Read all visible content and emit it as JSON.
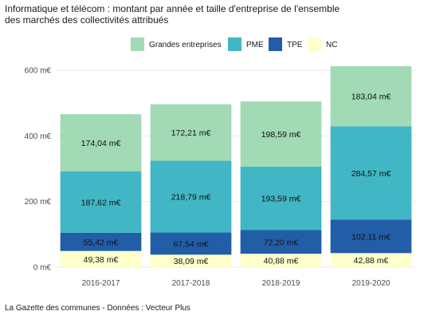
{
  "chart_data": {
    "type": "bar",
    "stacked": true,
    "title": "Informatique et télécom : montant par année et taille d'entreprise de l'ensemble des marchés des collectivités attribués",
    "title_lines": [
      "Informatique et télécom : montant par année et taille d'entreprise de l'ensemble",
      "des marchés des collectivités attribués"
    ],
    "caption": "La Gazette des communes - Données : Vecteur Plus",
    "categories": [
      "2016-2017",
      "2017-2018",
      "2018-2019",
      "2019-2020"
    ],
    "ylim": [
      0,
      620
    ],
    "yticks": [
      0,
      200,
      400,
      600
    ],
    "ytick_labels": [
      "0 m€",
      "200 m€",
      "400 m€",
      "600 m€"
    ],
    "grid": true,
    "legend_position": "top",
    "legend_order": [
      "Grandes entreprises",
      "PME",
      "TPE",
      "NC"
    ],
    "series": [
      {
        "name": "NC",
        "color": "#ffffcc",
        "values": [
          49.38,
          38.09,
          40.88,
          42.88
        ],
        "labels": [
          "49,38 m€",
          "38,09 m€",
          "40,88 m€",
          "42,88 m€"
        ]
      },
      {
        "name": "TPE",
        "color": "#225ea8",
        "values": [
          55.42,
          67.54,
          72.2,
          102.11
        ],
        "labels": [
          "55,42 m€",
          "67,54 m€",
          "72,20 m€",
          "102,11 m€"
        ]
      },
      {
        "name": "PME",
        "color": "#41b6c4",
        "values": [
          187.62,
          218.79,
          193.59,
          284.57
        ],
        "labels": [
          "187,62 m€",
          "218,79 m€",
          "193,59 m€",
          "284,57 m€"
        ]
      },
      {
        "name": "Grandes entreprises",
        "color": "#a1dab4",
        "values": [
          174.04,
          172.21,
          198.59,
          183.04
        ],
        "labels": [
          "174,04 m€",
          "172,21 m€",
          "198,59 m€",
          "183,04 m€"
        ]
      }
    ]
  }
}
